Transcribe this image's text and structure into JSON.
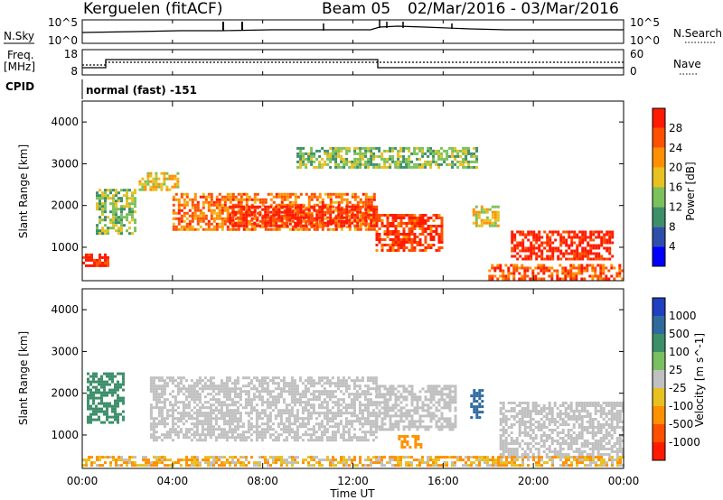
{
  "header": {
    "title": "Kerguelen (fitACF)",
    "beam": "Beam 05",
    "date_range": "02/Mar/2016 - 03/Mar/2016"
  },
  "top_panels": {
    "nsky_label": "N.Sky",
    "nsky_ticks": [
      "10^5",
      "10^0"
    ],
    "nsearch_label": "N.Search",
    "nsearch_ticks": [
      "10^5",
      "10^0"
    ],
    "freq_label_1": "Freq.",
    "freq_label_2": "[MHz]",
    "freq_ticks": [
      "18",
      "8"
    ],
    "nave_label": "Nave",
    "nave_ticks": [
      "60",
      "0"
    ],
    "cpid_label": "CPID",
    "cpid_value": "normal (fast) -151"
  },
  "time_axis": {
    "label": "Time UT",
    "ticks": [
      "00:00",
      "04:00",
      "08:00",
      "12:00",
      "16:00",
      "20:00",
      "00:00"
    ]
  },
  "colors": {
    "power_scale": [
      "#0000ff",
      "#2d4faa",
      "#3d8f6a",
      "#7cc15a",
      "#e8c020",
      "#ff9000",
      "#ff5000",
      "#ff1a00"
    ],
    "velocity_scale": [
      "#2040c0",
      "#2e6a9e",
      "#3d8f6a",
      "#78c060",
      "#c0c0c0",
      "#e8c020",
      "#ff9000",
      "#ff5000",
      "#ff1a00"
    ]
  },
  "chart_data": [
    {
      "type": "heatmap",
      "name": "power",
      "ylabel": "Slant Range [km]",
      "ylim": [
        200,
        4500
      ],
      "yticks": [
        "1000",
        "2000",
        "3000",
        "4000"
      ],
      "colorbar_label": "Power [dB]",
      "colorbar_ticks": [
        "4",
        "8",
        "12",
        "16",
        "20",
        "24",
        "28"
      ],
      "colorbar_range": [
        0,
        32
      ],
      "features": [
        {
          "t0": 0.0,
          "t1": 1.2,
          "r0": 550,
          "r1": 850,
          "value": 30
        },
        {
          "t0": 0.6,
          "t1": 2.4,
          "r0": 1300,
          "r1": 2400,
          "value": 14
        },
        {
          "t0": 2.5,
          "t1": 4.2,
          "r0": 2400,
          "r1": 2800,
          "value": 18
        },
        {
          "t0": 4.0,
          "t1": 13.0,
          "r0": 1400,
          "r1": 2300,
          "value": 24
        },
        {
          "t0": 6.5,
          "t1": 13.0,
          "r0": 1500,
          "r1": 2000,
          "value": 30
        },
        {
          "t0": 9.5,
          "t1": 17.5,
          "r0": 2900,
          "r1": 3400,
          "value": 14
        },
        {
          "t0": 13.0,
          "t1": 16.0,
          "r0": 900,
          "r1": 1800,
          "value": 28
        },
        {
          "t0": 17.3,
          "t1": 18.5,
          "r0": 1500,
          "r1": 2000,
          "value": 18
        },
        {
          "t0": 19.0,
          "t1": 23.5,
          "r0": 700,
          "r1": 1400,
          "value": 30
        },
        {
          "t0": 18.0,
          "t1": 24.0,
          "r0": 250,
          "r1": 600,
          "value": 26
        }
      ]
    },
    {
      "type": "heatmap",
      "name": "velocity",
      "ylabel": "Slant Range [km]",
      "ylim": [
        200,
        4500
      ],
      "yticks": [
        "1000",
        "2000",
        "3000",
        "4000"
      ],
      "colorbar_label": "Velocity [m s^-1]",
      "colorbar_ticks": [
        "1000",
        "500",
        "100",
        "25",
        "-25",
        "-100",
        "-500",
        "-1000"
      ],
      "features": [
        {
          "t0": 0.2,
          "t1": 1.8,
          "r0": 1300,
          "r1": 2500,
          "value": 300
        },
        {
          "t0": 3.0,
          "t1": 13.0,
          "r0": 900,
          "r1": 2400,
          "value": 0
        },
        {
          "t0": 13.0,
          "t1": 16.5,
          "r0": 1100,
          "r1": 2200,
          "value": 0
        },
        {
          "t0": 14.0,
          "t1": 15.0,
          "r0": 700,
          "r1": 1000,
          "value": -300
        },
        {
          "t0": 17.2,
          "t1": 17.8,
          "r0": 1400,
          "r1": 2100,
          "value": 600
        },
        {
          "t0": 18.5,
          "t1": 24.0,
          "r0": 500,
          "r1": 1800,
          "value": 0
        },
        {
          "t0": 0.0,
          "t1": 24.0,
          "r0": 250,
          "r1": 500,
          "value": -80
        }
      ]
    }
  ]
}
